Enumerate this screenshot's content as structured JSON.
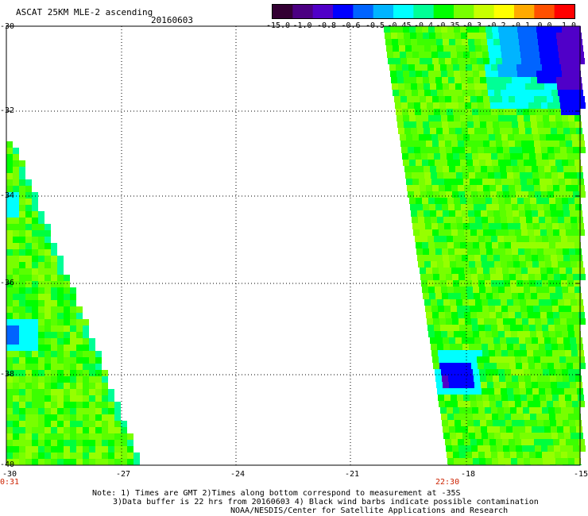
{
  "header": {
    "title": "ASCAT 25KM MLE-2 ascending",
    "date": "20160603"
  },
  "colorbar": {
    "labels": [
      "-15.0",
      "-1.0",
      "-0.8",
      "-0.6",
      "-0.5",
      "-0.45",
      "-0.4",
      "-0.35",
      "-0.3",
      "-0.2",
      "-0.1",
      "0.0",
      "1.0"
    ],
    "colors": [
      "#330033",
      "#4b0082",
      "#5000c8",
      "#0000ff",
      "#0064ff",
      "#00b4ff",
      "#00ffff",
      "#00ff96",
      "#00ff00",
      "#78ff00",
      "#c8ff00",
      "#ffff00",
      "#ffaa00",
      "#ff5000",
      "#ff0000"
    ]
  },
  "axes": {
    "lat_labels": [
      "-30",
      "-32",
      "-34",
      "-36",
      "-38",
      "-40"
    ],
    "lon_labels": [
      "-30",
      "-27",
      "-24",
      "-21",
      "-18",
      "-15"
    ],
    "lat_range": [
      -40,
      -30
    ],
    "lon_range": [
      -30,
      -15
    ]
  },
  "swaths": {
    "left_time": "0:31",
    "right_time": "22:30"
  },
  "notes": {
    "line1": "Note: 1) Times are GMT 2)Times along bottom correspond to measurement at -35S",
    "line2": "3)Data buffer is 22 hrs from 20160603 4) Black wind barbs indicate possible contamination",
    "line3": "NOAA/NESDIS/Center for Satellite Applications and Research"
  }
}
